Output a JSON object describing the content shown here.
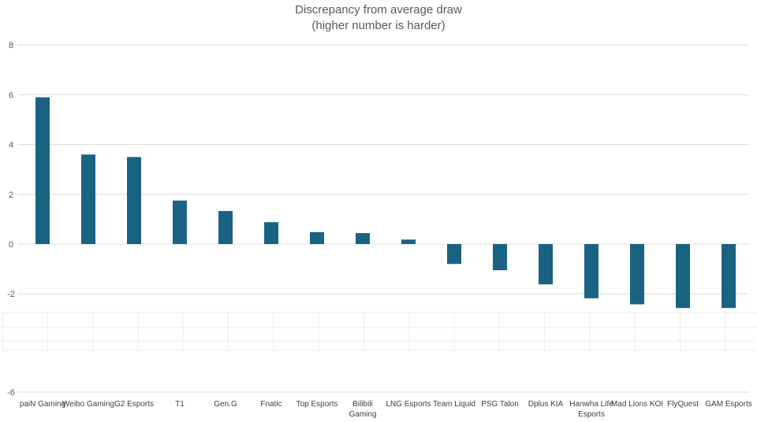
{
  "chart_data": {
    "type": "bar",
    "title": "Discrepancy from average draw",
    "subtitle": "(higher number is harder)",
    "xlabel": "",
    "ylabel": "",
    "ylim": [
      -6,
      8
    ],
    "yticks": [
      8,
      6,
      4,
      2,
      0,
      -2,
      -6
    ],
    "grid": true,
    "bar_color": "#1a6282",
    "categories": [
      "paiN Gaming",
      "Weibo Gaming",
      "G2 Esports",
      "T1",
      "Gen.G",
      "Fnatic",
      "Top Esports",
      "Bilibili Gaming",
      "LNG Esports",
      "Team Liquid",
      "PSG Talon",
      "Dplus KIA",
      "Hanwha Life Esports",
      "Mad Lions KOI",
      "FlyQuest",
      "GAM Esports"
    ],
    "values": [
      5.9,
      3.6,
      3.5,
      1.75,
      1.33,
      0.88,
      0.48,
      0.44,
      0.18,
      -0.8,
      -1.05,
      -1.62,
      -2.18,
      -2.42,
      -2.57,
      -2.57
    ]
  }
}
